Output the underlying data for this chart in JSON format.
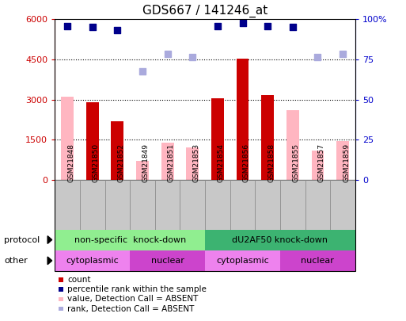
{
  "title": "GDS667 / 141246_at",
  "samples": [
    "GSM21848",
    "GSM21850",
    "GSM21852",
    "GSM21849",
    "GSM21851",
    "GSM21853",
    "GSM21854",
    "GSM21856",
    "GSM21858",
    "GSM21855",
    "GSM21857",
    "GSM21859"
  ],
  "count": [
    0,
    2900,
    2200,
    0,
    0,
    0,
    3050,
    4520,
    3150,
    0,
    0,
    0
  ],
  "count_absent": [
    3100,
    0,
    0,
    700,
    1380,
    1200,
    0,
    0,
    0,
    2600,
    1100,
    1450
  ],
  "rank_present": [
    5750,
    5700,
    5600,
    0,
    0,
    0,
    5750,
    5850,
    5750,
    5700,
    0,
    0
  ],
  "rank_absent": [
    0,
    0,
    0,
    4050,
    4700,
    4600,
    0,
    0,
    0,
    0,
    4600,
    4700
  ],
  "ylim_left": [
    0,
    6000
  ],
  "ylim_right": [
    0,
    100
  ],
  "yticks_left": [
    0,
    1500,
    3000,
    4500,
    6000
  ],
  "yticks_right": [
    0,
    25,
    50,
    75,
    100
  ],
  "protocol_groups": [
    {
      "label": "non-specific  knock-down",
      "start": 0,
      "end": 6,
      "color": "#90EE90"
    },
    {
      "label": "dU2AF50 knock-down",
      "start": 6,
      "end": 12,
      "color": "#3CB371"
    }
  ],
  "other_groups": [
    {
      "label": "cytoplasmic",
      "start": 0,
      "end": 3,
      "color": "#EE82EE"
    },
    {
      "label": "nuclear",
      "start": 3,
      "end": 6,
      "color": "#CC44CC"
    },
    {
      "label": "cytoplasmic",
      "start": 6,
      "end": 9,
      "color": "#EE82EE"
    },
    {
      "label": "nuclear",
      "start": 9,
      "end": 12,
      "color": "#CC44CC"
    }
  ],
  "bar_width": 0.5,
  "color_count": "#CC0000",
  "color_count_absent": "#FFB6C1",
  "color_rank_present": "#00008B",
  "color_rank_absent": "#AAAADD",
  "left_tick_color": "#CC0000",
  "right_tick_color": "#0000CC",
  "grid_color": "black",
  "grid_linestyle": "dotted",
  "bg_color": "white",
  "legend_items": [
    {
      "color": "#CC0000",
      "label": "count"
    },
    {
      "color": "#00008B",
      "label": "percentile rank within the sample"
    },
    {
      "color": "#FFB6C1",
      "label": "value, Detection Call = ABSENT"
    },
    {
      "color": "#AAAADD",
      "label": "rank, Detection Call = ABSENT"
    }
  ]
}
